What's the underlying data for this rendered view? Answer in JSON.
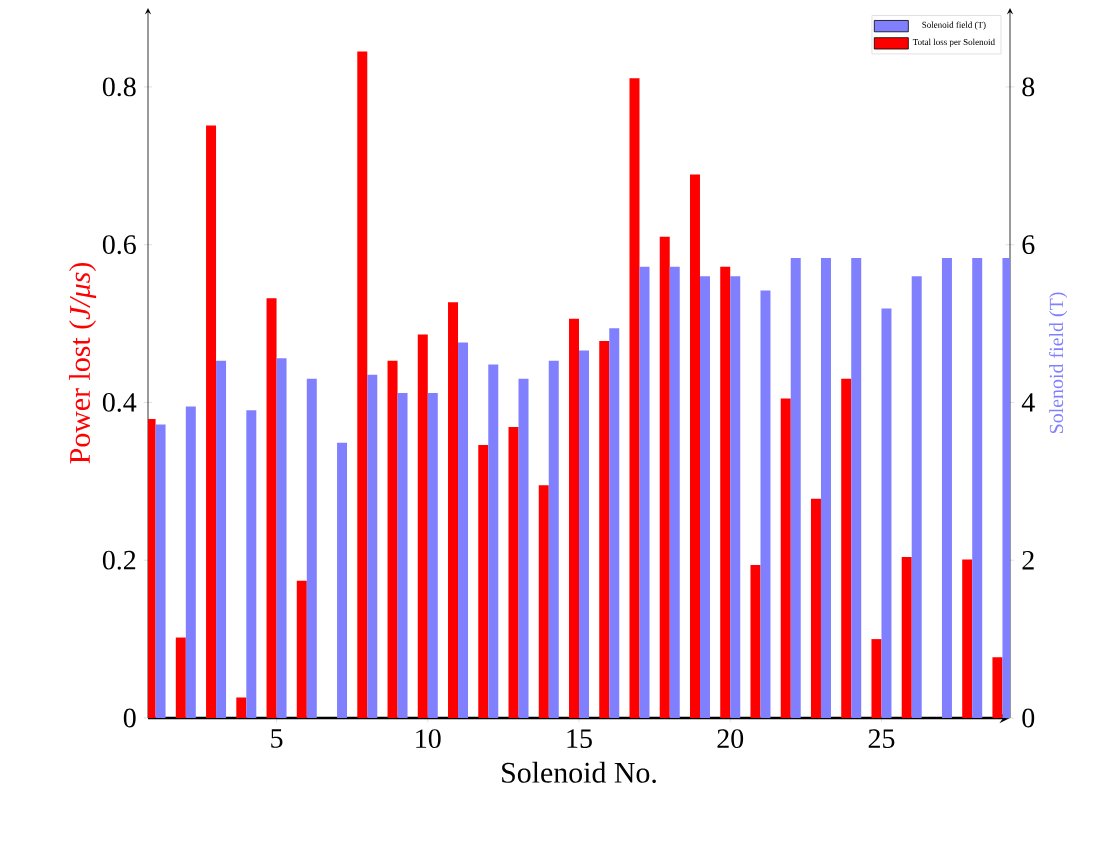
{
  "chart_data": {
    "type": "bar",
    "xlabel": "Solenoid No.",
    "ylabel": "Power lost (*J/μs*)",
    "y2label": "Solenoid field (T)",
    "x": [
      1,
      2,
      3,
      4,
      5,
      6,
      7,
      8,
      9,
      10,
      11,
      12,
      13,
      14,
      15,
      16,
      17,
      18,
      19,
      20,
      21,
      22,
      23,
      24,
      25,
      26,
      27,
      28,
      29
    ],
    "series": [
      {
        "name": "Total loss per Solenoid",
        "color": "#ff0000",
        "values": [
          0.379,
          0.102,
          0.751,
          0.026,
          0.532,
          0.174,
          null,
          0.845,
          0.453,
          0.486,
          0.527,
          0.346,
          0.369,
          0.295,
          0.506,
          0.478,
          0.811,
          0.61,
          0.689,
          0.572,
          0.194,
          0.405,
          0.278,
          0.43,
          0.1,
          0.204,
          null,
          0.201,
          0.077
        ]
      },
      {
        "name": "Solenoid field (T)",
        "color": "#8080ff",
        "axis": "y2",
        "values": [
          3.72,
          3.95,
          4.53,
          3.9,
          4.56,
          4.3,
          3.49,
          4.35,
          4.12,
          4.12,
          4.76,
          4.48,
          4.3,
          4.53,
          4.66,
          4.94,
          5.72,
          5.72,
          5.6,
          5.6,
          5.42,
          5.83,
          5.83,
          5.83,
          5.19,
          5.6,
          5.83,
          5.83,
          5.83
        ]
      }
    ],
    "xlim": [
      0.75,
      29.25
    ],
    "ylim": [
      0,
      0.9
    ],
    "y2lim": [
      0,
      9
    ],
    "xticks": [
      5,
      10,
      15,
      20,
      25
    ],
    "yticks": [
      0,
      0.2,
      0.4,
      0.6,
      0.8
    ],
    "y2ticks": [
      0,
      2,
      4,
      6,
      8
    ],
    "legend": "top right"
  }
}
